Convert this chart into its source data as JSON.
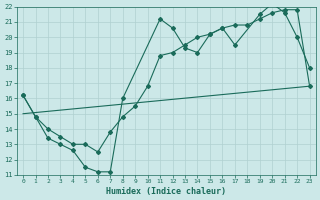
{
  "xlabel": "Humidex (Indice chaleur)",
  "bg_color": "#cce8e8",
  "grid_color": "#b0d0d0",
  "line_color": "#1a6b5a",
  "xlim": [
    -0.5,
    23.5
  ],
  "ylim": [
    11,
    22
  ],
  "xticks": [
    0,
    1,
    2,
    3,
    4,
    5,
    6,
    7,
    8,
    9,
    10,
    11,
    12,
    13,
    14,
    15,
    16,
    17,
    18,
    19,
    20,
    21,
    22,
    23
  ],
  "yticks": [
    11,
    12,
    13,
    14,
    15,
    16,
    17,
    18,
    19,
    20,
    21,
    22
  ],
  "line1_x": [
    0,
    1,
    2,
    3,
    4,
    5,
    6,
    7,
    8,
    11,
    12,
    13,
    14,
    15,
    16,
    17,
    19,
    20,
    21,
    22,
    23
  ],
  "line1_y": [
    16.2,
    14.8,
    13.4,
    13.0,
    12.6,
    11.5,
    11.2,
    11.2,
    16.0,
    21.2,
    20.6,
    19.3,
    19.0,
    20.2,
    20.6,
    19.5,
    21.5,
    22.2,
    21.6,
    20.0,
    18.0
  ],
  "line2_x": [
    0,
    1,
    2,
    3,
    4,
    5,
    6,
    7,
    8,
    9,
    10,
    11,
    12,
    13,
    14,
    15,
    16,
    17,
    18,
    19,
    20,
    21,
    22,
    23
  ],
  "line2_y": [
    16.2,
    14.8,
    14.0,
    13.5,
    13.0,
    13.0,
    12.5,
    13.8,
    14.8,
    15.5,
    16.8,
    18.8,
    19.0,
    19.5,
    20.0,
    20.2,
    20.6,
    20.8,
    20.8,
    21.2,
    21.6,
    21.8,
    21.8,
    16.8
  ],
  "line3_x": [
    0,
    23
  ],
  "line3_y": [
    15.0,
    16.8
  ]
}
